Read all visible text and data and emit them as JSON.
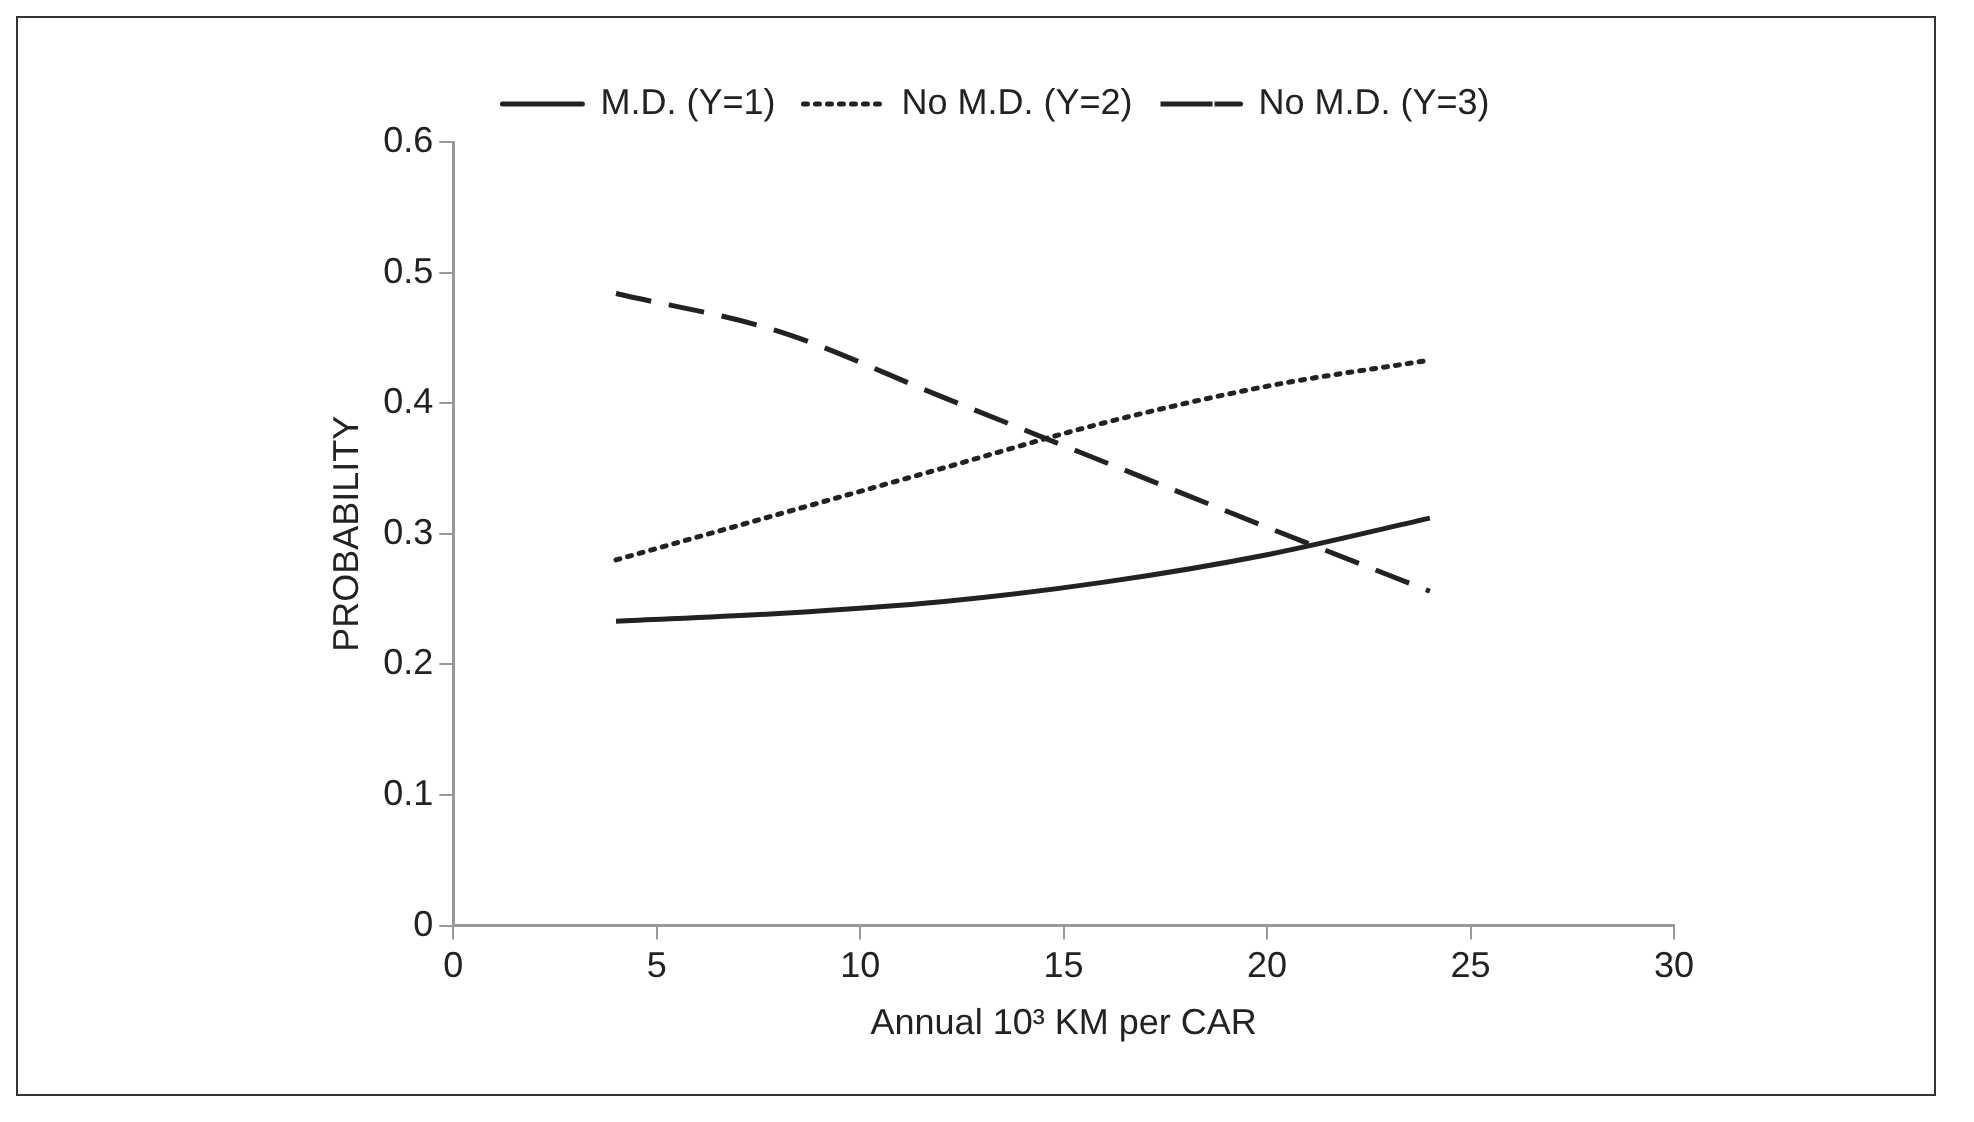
{
  "chart_data": {
    "type": "line",
    "xlabel": "Annual 10³ KM per CAR",
    "ylabel": "PROBABILITY",
    "xlim": [
      0,
      30
    ],
    "xticks": [
      0,
      5,
      10,
      15,
      20,
      25,
      30
    ],
    "ylim": [
      0,
      0.6
    ],
    "yticks": [
      0,
      0.1,
      0.2,
      0.3,
      0.4,
      0.5,
      0.6
    ],
    "x": [
      4,
      8,
      12,
      16,
      20,
      24
    ],
    "grid": false,
    "legend": "top",
    "marker": "none",
    "series": [
      {
        "name": "M.D. (Y=1)",
        "color": "#222222",
        "line_style": "solid",
        "values": [
          0.233,
          0.239,
          0.248,
          0.263,
          0.284,
          0.312
        ]
      },
      {
        "name": "No M.D. (Y=2)",
        "color": "#222222",
        "line_style": "dotted",
        "values": [
          0.28,
          0.315,
          0.35,
          0.385,
          0.413,
          0.433
        ]
      },
      {
        "name": "No M.D. (Y=3)",
        "color": "#222222",
        "line_style": "dashed",
        "values": [
          0.484,
          0.455,
          0.405,
          0.355,
          0.305,
          0.256
        ]
      }
    ]
  }
}
